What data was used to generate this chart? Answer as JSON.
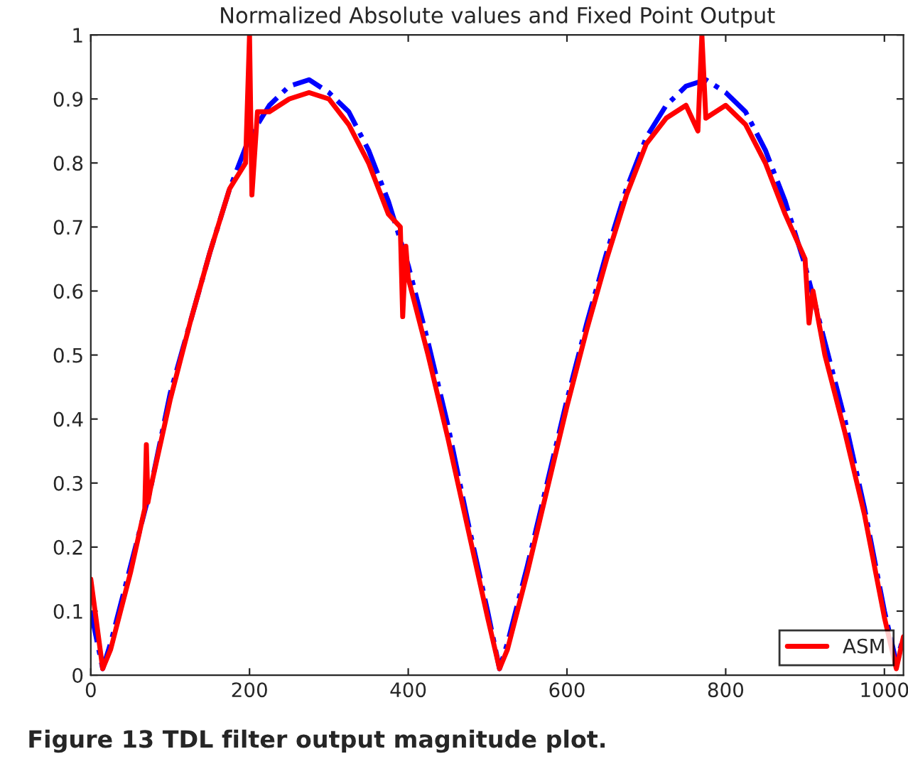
{
  "chart_data": {
    "type": "line",
    "title": "Normalized Absolute values and Fixed Point Output",
    "xlim": [
      0,
      1024
    ],
    "xticks": [
      0,
      200,
      400,
      600,
      800,
      1000
    ],
    "ylim": [
      0,
      1
    ],
    "yticks": [
      0,
      0.1,
      0.2,
      0.3,
      0.4,
      0.5,
      0.6,
      0.7,
      0.8,
      0.9,
      1
    ],
    "grid": false,
    "legend": "bottom right",
    "marker": "none",
    "annotations": [
      "Figure 13 TDL filter output magnitude plot."
    ],
    "series": [
      {
        "color": "#0000ff",
        "line_style": "dashdot",
        "x": [
          0,
          15,
          25,
          50,
          75,
          100,
          125,
          150,
          175,
          200,
          225,
          250,
          275,
          300,
          325,
          350,
          375,
          400,
          425,
          450,
          475,
          500,
          515,
          525,
          550,
          575,
          600,
          625,
          650,
          675,
          700,
          725,
          750,
          775,
          800,
          825,
          850,
          875,
          900,
          925,
          950,
          975,
          1000,
          1015,
          1024
        ],
        "values": [
          0.1,
          0.01,
          0.05,
          0.17,
          0.29,
          0.44,
          0.55,
          0.66,
          0.76,
          0.84,
          0.89,
          0.92,
          0.93,
          0.91,
          0.88,
          0.82,
          0.74,
          0.64,
          0.52,
          0.39,
          0.24,
          0.1,
          0.01,
          0.05,
          0.17,
          0.3,
          0.43,
          0.55,
          0.66,
          0.76,
          0.84,
          0.89,
          0.92,
          0.93,
          0.91,
          0.88,
          0.82,
          0.74,
          0.64,
          0.52,
          0.4,
          0.26,
          0.1,
          0.02,
          0.06
        ]
      },
      {
        "name": "ASM",
        "color": "#ff0000",
        "line_style": "solid",
        "x": [
          0,
          15,
          25,
          50,
          68,
          70,
          72,
          75,
          100,
          125,
          150,
          175,
          195,
          200,
          203,
          210,
          225,
          250,
          275,
          300,
          325,
          350,
          375,
          390,
          393,
          397,
          400,
          425,
          450,
          475,
          500,
          515,
          525,
          550,
          575,
          600,
          625,
          650,
          675,
          700,
          725,
          750,
          765,
          770,
          775,
          800,
          825,
          850,
          875,
          900,
          905,
          910,
          925,
          950,
          975,
          1000,
          1015,
          1024
        ],
        "values": [
          0.15,
          0.01,
          0.04,
          0.16,
          0.26,
          0.36,
          0.27,
          0.29,
          0.43,
          0.55,
          0.66,
          0.76,
          0.8,
          1.0,
          0.75,
          0.88,
          0.88,
          0.9,
          0.91,
          0.9,
          0.86,
          0.8,
          0.72,
          0.7,
          0.56,
          0.67,
          0.62,
          0.5,
          0.37,
          0.23,
          0.09,
          0.01,
          0.04,
          0.16,
          0.29,
          0.42,
          0.54,
          0.65,
          0.75,
          0.83,
          0.87,
          0.89,
          0.85,
          1.0,
          0.87,
          0.89,
          0.86,
          0.8,
          0.72,
          0.65,
          0.55,
          0.6,
          0.5,
          0.38,
          0.25,
          0.09,
          0.01,
          0.06
        ]
      }
    ]
  }
}
